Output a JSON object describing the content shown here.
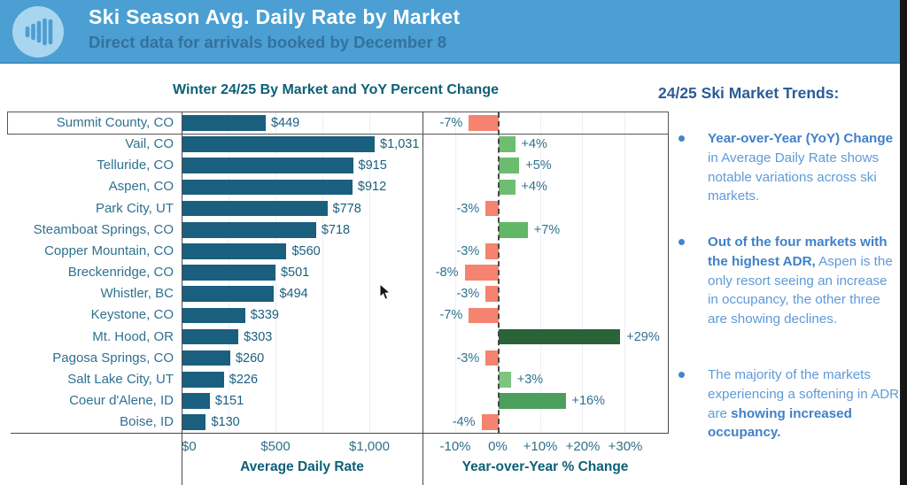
{
  "header": {
    "title": "Ski Season Avg. Daily Rate by Market",
    "subtitle": "Direct data for arrivals booked by December 8",
    "icon": "bar-chart-logo-icon",
    "bg_color": "#4B9FD2",
    "icon_circle_color": "#A8D5EF"
  },
  "mouse_cursor": "arrow-pointer-icon",
  "chart_data": {
    "type": "bar",
    "orientation": "horizontal",
    "title": "Winter 24/25 By Market and YoY Percent Change",
    "highlighted_row": "Summit County, CO",
    "adr_axis": {
      "label": "Average Daily Rate",
      "ticks": [
        "$0",
        "$500",
        "$1,000"
      ],
      "tick_values": [
        0,
        500,
        1000
      ],
      "max": 1285
    },
    "yoy_axis": {
      "label": "Year-over-Year % Change",
      "ticks": [
        "-10%",
        "0%",
        "+10%",
        "+20%",
        "+30%"
      ],
      "tick_values": [
        -10,
        0,
        10,
        20,
        30
      ],
      "min": -18,
      "max": 40
    },
    "colors": {
      "adr_bar": "#1A5F7D",
      "negative_bar": "#F5836F",
      "positive_light": "#7EC680",
      "positive_mid": "#4C9E5C",
      "positive_dark": "#2A6239"
    },
    "rows": [
      {
        "market": "Summit County, CO",
        "adr": 449,
        "adr_label": "$449",
        "yoy": -7,
        "yoy_label": "-7%",
        "yoy_color": "#F5836F"
      },
      {
        "market": "Vail, CO",
        "adr": 1031,
        "adr_label": "$1,031",
        "yoy": 4,
        "yoy_label": "+4%",
        "yoy_color": "#6FBD72"
      },
      {
        "market": "Telluride, CO",
        "adr": 915,
        "adr_label": "$915",
        "yoy": 5,
        "yoy_label": "+5%",
        "yoy_color": "#6CBC6F"
      },
      {
        "market": "Aspen, CO",
        "adr": 912,
        "adr_label": "$912",
        "yoy": 4,
        "yoy_label": "+4%",
        "yoy_color": "#6FBD72"
      },
      {
        "market": "Park City, UT",
        "adr": 778,
        "adr_label": "$778",
        "yoy": -3,
        "yoy_label": "-3%",
        "yoy_color": "#F5836F"
      },
      {
        "market": "Steamboat Springs, CO",
        "adr": 718,
        "adr_label": "$718",
        "yoy": 7,
        "yoy_label": "+7%",
        "yoy_color": "#61B766"
      },
      {
        "market": "Copper Mountain, CO",
        "adr": 560,
        "adr_label": "$560",
        "yoy": -3,
        "yoy_label": "-3%",
        "yoy_color": "#F5836F"
      },
      {
        "market": "Breckenridge, CO",
        "adr": 501,
        "adr_label": "$501",
        "yoy": -8,
        "yoy_label": "-8%",
        "yoy_color": "#F5836F"
      },
      {
        "market": "Whistler, BC",
        "adr": 494,
        "adr_label": "$494",
        "yoy": -3,
        "yoy_label": "-3%",
        "yoy_color": "#F5836F"
      },
      {
        "market": "Keystone, CO",
        "adr": 339,
        "adr_label": "$339",
        "yoy": -7,
        "yoy_label": "-7%",
        "yoy_color": "#F5836F"
      },
      {
        "market": "Mt. Hood, OR",
        "adr": 303,
        "adr_label": "$303",
        "yoy": 29,
        "yoy_label": "+29%",
        "yoy_color": "#2A6239"
      },
      {
        "market": "Pagosa Springs, CO",
        "adr": 260,
        "adr_label": "$260",
        "yoy": -3,
        "yoy_label": "-3%",
        "yoy_color": "#F5836F"
      },
      {
        "market": "Salt Lake City, UT",
        "adr": 226,
        "adr_label": "$226",
        "yoy": 3,
        "yoy_label": "+3%",
        "yoy_color": "#7EC680"
      },
      {
        "market": "Coeur d'Alene, ID",
        "adr": 151,
        "adr_label": "$151",
        "yoy": 16,
        "yoy_label": "+16%",
        "yoy_color": "#4C9E5C"
      },
      {
        "market": "Boise, ID",
        "adr": 130,
        "adr_label": "$130",
        "yoy": -4,
        "yoy_label": "-4%",
        "yoy_color": "#F5836F"
      }
    ]
  },
  "sidebar": {
    "heading": "24/25 Ski Market Trends:",
    "bullets": [
      {
        "segments": [
          {
            "text": "Year-over-Year (YoY) Change",
            "bold": true
          },
          {
            "text": " in Average Daily Rate shows notable variations across ski markets.",
            "bold": false
          }
        ]
      },
      {
        "segments": [
          {
            "text": "Out of the four markets with the highest ADR,",
            "bold": true
          },
          {
            "text": " Aspen is the only resort seeing an increase in occupancy, the other three are showing declines.",
            "bold": false
          }
        ]
      },
      {
        "segments": [
          {
            "text": "The majority of the markets experiencing a softening in ADR are ",
            "bold": false
          },
          {
            "text": "showing increased occupancy.",
            "bold": true
          }
        ]
      }
    ]
  }
}
